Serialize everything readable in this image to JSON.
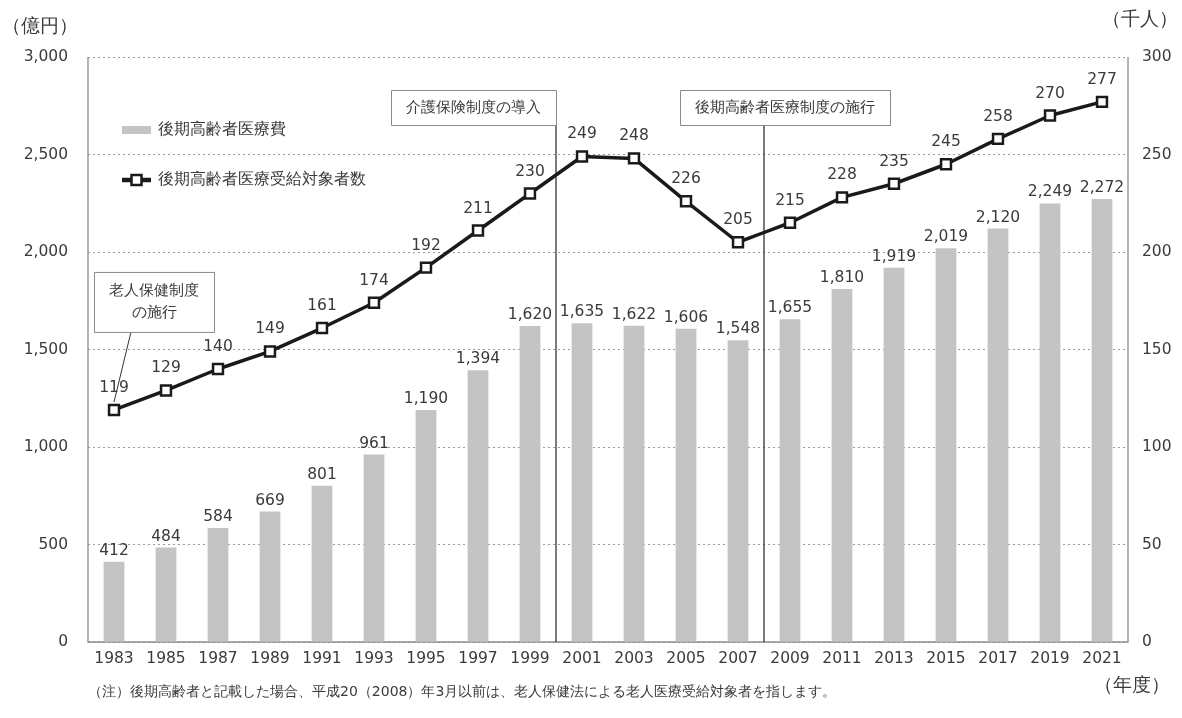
{
  "chart_data": {
    "type": "bar",
    "x": [
      1983,
      1985,
      1987,
      1989,
      1991,
      1993,
      1995,
      1997,
      1999,
      2001,
      2003,
      2005,
      2007,
      2009,
      2011,
      2013,
      2015,
      2017,
      2019,
      2021
    ],
    "xlim": [
      1982,
      2022
    ],
    "xticks": [
      1983,
      1985,
      1987,
      1989,
      1991,
      1993,
      1995,
      1997,
      1999,
      2001,
      2003,
      2005,
      2007,
      2009,
      2011,
      2013,
      2015,
      2017,
      2019,
      2021
    ],
    "xlabel": "（年度）",
    "ylabel": "（億円）",
    "y2label": "（千人）",
    "ylim": [
      0,
      3000
    ],
    "yticks": [
      0,
      500,
      {
        "value": 1000,
        "label": "1,000"
      },
      {
        "value": 1500,
        "label": "1,500"
      },
      {
        "value": 2000,
        "label": "2,000"
      },
      {
        "value": 2500,
        "label": "2,500"
      },
      {
        "value": 3000,
        "label": "3,000"
      }
    ],
    "y2lim": [
      0,
      300
    ],
    "y2ticks": [
      0,
      50,
      100,
      150,
      200,
      250,
      300
    ],
    "grid": "y",
    "legend": "top left",
    "marker": "square",
    "series": [
      {
        "name": "後期高齢者医療費",
        "color": "#c4c4c4",
        "values": [
          412,
          484,
          584,
          669,
          801,
          961,
          1190,
          1394,
          1620,
          1635,
          1622,
          1606,
          1548,
          1655,
          1810,
          1919,
          2019,
          2120,
          2249,
          2272
        ],
        "value_labels": [
          "412",
          "484",
          "584",
          "669",
          "801",
          "961",
          "1,190",
          "1,394",
          "1,620",
          "1,635",
          "1,622",
          "1,606",
          "1,548",
          "1,655",
          "1,810",
          "1,919",
          "2,019",
          "2,120",
          "2,249",
          "2,272"
        ]
      },
      {
        "name": "後期高齢者医療受給対象者数",
        "type": "line",
        "axis": "y2",
        "color": "#1a1a1a",
        "values": [
          119,
          129,
          140,
          149,
          161,
          174,
          192,
          211,
          230,
          249,
          248,
          226,
          205,
          215,
          228,
          235,
          245,
          258,
          270,
          277
        ],
        "value_labels": [
          "119",
          "129",
          "140",
          "149",
          "161",
          "174",
          "192",
          "211",
          "230",
          "249",
          "248",
          "226",
          "205",
          "215",
          "228",
          "235",
          "245",
          "258",
          "270",
          "277"
        ]
      }
    ],
    "ref_lines": [
      {
        "axis": "x",
        "value": 2000,
        "label": "介護保険制度の導入",
        "color": "#333333"
      },
      {
        "axis": "x",
        "value": 2008,
        "label": "後期高齢者医療制度の施行",
        "color": "#333333"
      }
    ],
    "annotations": [
      {
        "text": "老人保健制度の施行",
        "x": 1983,
        "y": 1190
      },
      "（注）後期高齢者と記載した場合、平成20（2008）年3月以前は、老人保健法による老人医療受給対象者を指します。"
    ]
  }
}
